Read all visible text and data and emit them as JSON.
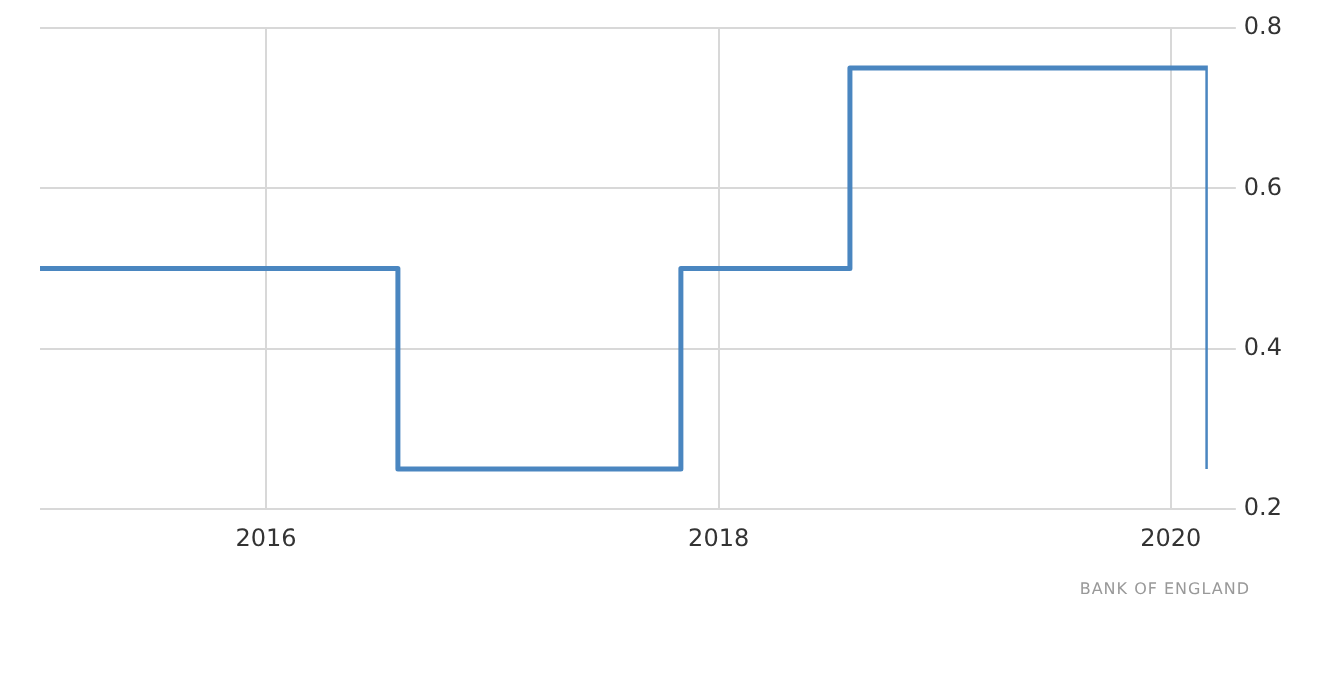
{
  "chart_data": {
    "type": "step",
    "x": [
      "2015-01",
      "2016-08",
      "2017-11",
      "2018-08",
      "2020-03"
    ],
    "series": [
      {
        "color": "#4a86c0",
        "values": [
          0.5,
          0.25,
          0.5,
          0.75,
          0.25
        ]
      }
    ],
    "xlim": [
      "2015-01",
      "2020-03"
    ],
    "xticks": [
      "2016",
      "2018",
      "2020"
    ],
    "ylim": [
      0.2,
      0.8
    ],
    "yticks": [
      0.2,
      0.4,
      0.6,
      0.8
    ],
    "grid": true,
    "legend": false,
    "line_style": "solid",
    "marker": "none",
    "annotations": [
      "BANK OF ENGLAND"
    ]
  }
}
